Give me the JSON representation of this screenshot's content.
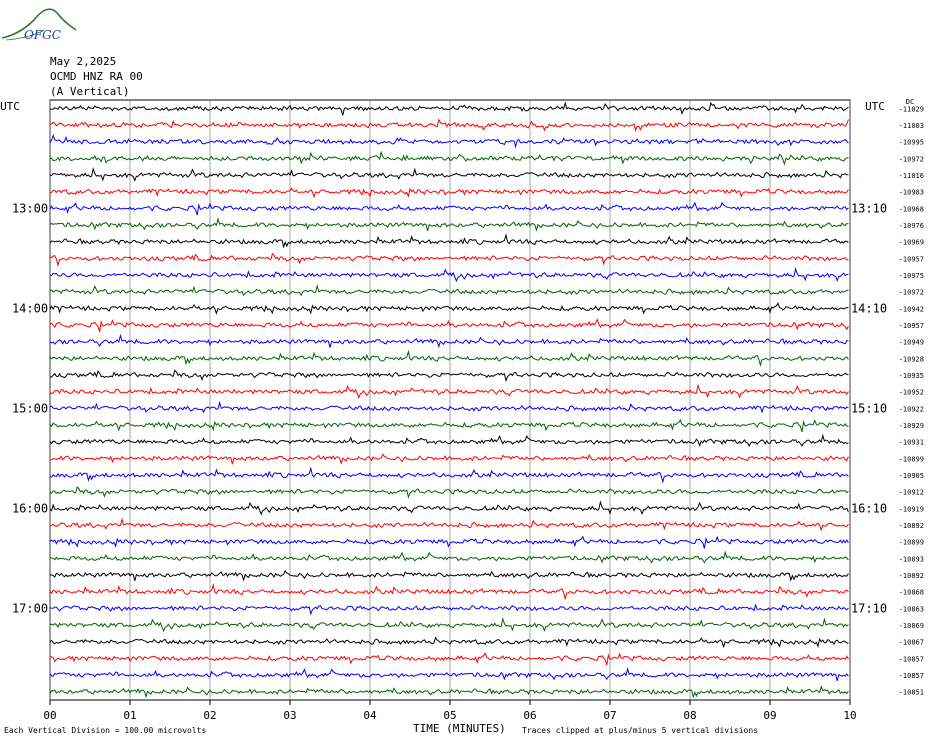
{
  "header": {
    "date": "May 2,2025",
    "station": "OCMD HNZ RA 00",
    "component": "(A Vertical)"
  },
  "logo": {
    "text": "OFGC",
    "accent_color": "#2e7d32",
    "text_color": "#1f3f9f"
  },
  "chart_data": {
    "type": "line",
    "title": "",
    "xlabel": "TIME (MINUTES)",
    "ylabel": "",
    "xlim": [
      0,
      10
    ],
    "x_ticks": [
      "00",
      "01",
      "02",
      "03",
      "04",
      "05",
      "06",
      "07",
      "08",
      "09",
      "10"
    ],
    "left_axis_unit": "UTC",
    "right_axis_unit": "UTC",
    "left_time_labels": [
      {
        "row": 6,
        "label": "13:00"
      },
      {
        "row": 12,
        "label": "14:00"
      },
      {
        "row": 18,
        "label": "15:00"
      },
      {
        "row": 24,
        "label": "16:00"
      },
      {
        "row": 30,
        "label": "17:00"
      }
    ],
    "right_time_labels": [
      {
        "row": 6,
        "label": "13:10"
      },
      {
        "row": 12,
        "label": "14:10"
      },
      {
        "row": 18,
        "label": "15:10"
      },
      {
        "row": 24,
        "label": "16:10"
      },
      {
        "row": 30,
        "label": "17:10"
      }
    ],
    "trace_colors": [
      "#000000",
      "#ff0000",
      "#0000ff",
      "#006600"
    ],
    "dc_label": "DC",
    "trace_offsets": [
      -11029,
      -11003,
      -10995,
      -10972,
      -11016,
      -10983,
      -10968,
      -10976,
      -10969,
      -10957,
      -10975,
      -10972,
      -10942,
      -10957,
      -10949,
      -10928,
      -10935,
      -10952,
      -10922,
      -10929,
      -10931,
      -10899,
      -10905,
      -10912,
      -10919,
      -10892,
      -10899,
      -10893,
      -10892,
      -10868,
      -10863,
      -10869,
      -10867,
      -10857,
      -10857,
      -10851
    ],
    "trace_count": 36,
    "scale_note": "Each Vertical Division =  100.00 microvolts",
    "clip_note": "Traces clipped at plus/minus 5 vertical divisions"
  }
}
